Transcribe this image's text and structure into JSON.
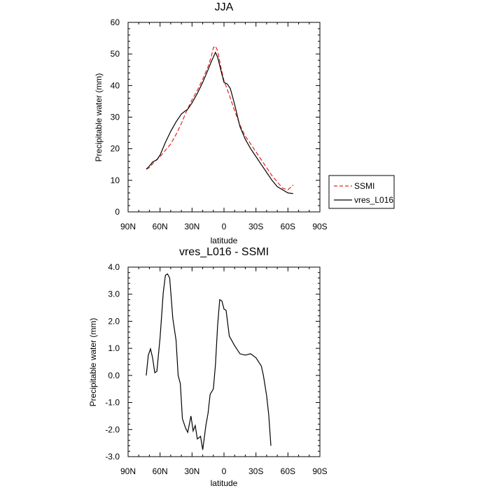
{
  "chart_data": [
    {
      "type": "line",
      "title": "JJA",
      "xlabel": "latitude",
      "ylabel": "Precipitable water (mm)",
      "xlim": [
        90,
        -90
      ],
      "ylim": [
        0,
        60
      ],
      "x_ticks": [
        90,
        60,
        30,
        0,
        -30,
        -60,
        -90
      ],
      "x_tick_labels": [
        "90N",
        "60N",
        "30N",
        "0",
        "30S",
        "60S",
        "90S"
      ],
      "y_ticks": [
        0,
        10,
        20,
        30,
        40,
        50,
        60
      ],
      "y_tick_labels": [
        "0",
        "10",
        "20",
        "30",
        "40",
        "50",
        "60"
      ],
      "legend": {
        "position": "right",
        "entries": [
          "SSMI",
          "vres_L016"
        ]
      },
      "series": [
        {
          "name": "SSMI",
          "color": "#e8231d",
          "dash": "dashed",
          "points": [
            [
              73,
              13.5
            ],
            [
              70,
              14
            ],
            [
              65,
              16
            ],
            [
              60,
              17.5
            ],
            [
              55,
              19.5
            ],
            [
              50,
              21.5
            ],
            [
              45,
              24.5
            ],
            [
              40,
              28
            ],
            [
              35,
              32
            ],
            [
              30,
              35.5
            ],
            [
              25,
              38.5
            ],
            [
              20,
              42
            ],
            [
              15,
              46
            ],
            [
              12,
              49
            ],
            [
              10,
              52
            ],
            [
              8,
              52.5
            ],
            [
              6,
              51
            ],
            [
              3,
              46
            ],
            [
              0,
              41.5
            ],
            [
              -5,
              37
            ],
            [
              -10,
              32
            ],
            [
              -15,
              27.5
            ],
            [
              -20,
              24
            ],
            [
              -25,
              21.5
            ],
            [
              -30,
              19
            ],
            [
              -35,
              16.5
            ],
            [
              -40,
              14
            ],
            [
              -45,
              11.5
            ],
            [
              -50,
              9.5
            ],
            [
              -55,
              7.5
            ],
            [
              -60,
              7
            ],
            [
              -65,
              8.5
            ]
          ]
        },
        {
          "name": "vres_L016",
          "color": "#000000",
          "dash": "solid",
          "points": [
            [
              73,
              13.5
            ],
            [
              70,
              14.5
            ],
            [
              67,
              15.8
            ],
            [
              63,
              16.5
            ],
            [
              60,
              18
            ],
            [
              55,
              22
            ],
            [
              50,
              25.5
            ],
            [
              45,
              28.5
            ],
            [
              40,
              31
            ],
            [
              37,
              31.8
            ],
            [
              34,
              32.5
            ],
            [
              30,
              34.5
            ],
            [
              25,
              37.5
            ],
            [
              20,
              41
            ],
            [
              15,
              45
            ],
            [
              12,
              47.5
            ],
            [
              8,
              50.5
            ],
            [
              6,
              49
            ],
            [
              3,
              45
            ],
            [
              0,
              41
            ],
            [
              -3,
              40.5
            ],
            [
              -6,
              39
            ],
            [
              -10,
              34
            ],
            [
              -15,
              27
            ],
            [
              -20,
              23
            ],
            [
              -25,
              20
            ],
            [
              -30,
              17.5
            ],
            [
              -35,
              15
            ],
            [
              -40,
              12.5
            ],
            [
              -45,
              10
            ],
            [
              -50,
              8
            ],
            [
              -55,
              7
            ],
            [
              -60,
              6
            ],
            [
              -65,
              5.8
            ]
          ]
        }
      ]
    },
    {
      "type": "line",
      "title": "vres_L016 - SSMI",
      "xlabel": "latitude",
      "ylabel": "Precipitable water (mm)",
      "xlim": [
        90,
        -90
      ],
      "ylim": [
        -3,
        4
      ],
      "x_ticks": [
        90,
        60,
        30,
        0,
        -30,
        -60,
        -90
      ],
      "x_tick_labels": [
        "90N",
        "60N",
        "30N",
        "0",
        "30S",
        "60S",
        "90S"
      ],
      "y_ticks": [
        4,
        3,
        2,
        1,
        0,
        -1,
        -2,
        -3
      ],
      "y_tick_labels": [
        "4.0",
        "3.0",
        "2.0",
        "1.0",
        "0.0",
        "-1.0",
        "-2.0",
        "-3.0"
      ],
      "series": [
        {
          "color": "#000000",
          "dash": "solid",
          "points": [
            [
              73,
              0.0
            ],
            [
              71,
              0.75
            ],
            [
              69,
              0.98
            ],
            [
              67,
              0.65
            ],
            [
              65,
              0.1
            ],
            [
              63,
              0.15
            ],
            [
              60,
              1.4
            ],
            [
              57,
              3.05
            ],
            [
              55,
              3.7
            ],
            [
              53,
              3.75
            ],
            [
              51,
              3.6
            ],
            [
              48,
              2.1
            ],
            [
              45,
              1.3
            ],
            [
              43,
              0.0
            ],
            [
              41,
              -0.3
            ],
            [
              39,
              -1.6
            ],
            [
              36,
              -1.95
            ],
            [
              34,
              -2.1
            ],
            [
              31,
              -1.5
            ],
            [
              29,
              -2.05
            ],
            [
              27,
              -1.85
            ],
            [
              25,
              -2.35
            ],
            [
              22,
              -2.25
            ],
            [
              20,
              -2.75
            ],
            [
              17,
              -1.85
            ],
            [
              15,
              -1.4
            ],
            [
              13,
              -0.7
            ],
            [
              10,
              -0.5
            ],
            [
              8,
              0.4
            ],
            [
              6,
              1.85
            ],
            [
              4,
              2.8
            ],
            [
              2,
              2.75
            ],
            [
              0,
              2.45
            ],
            [
              -2,
              2.4
            ],
            [
              -5,
              1.45
            ],
            [
              -10,
              1.1
            ],
            [
              -15,
              0.8
            ],
            [
              -20,
              0.75
            ],
            [
              -25,
              0.8
            ],
            [
              -30,
              0.65
            ],
            [
              -35,
              0.35
            ],
            [
              -37,
              0.0
            ],
            [
              -40,
              -0.75
            ],
            [
              -42,
              -1.45
            ],
            [
              -44,
              -2.6
            ]
          ]
        }
      ]
    }
  ]
}
